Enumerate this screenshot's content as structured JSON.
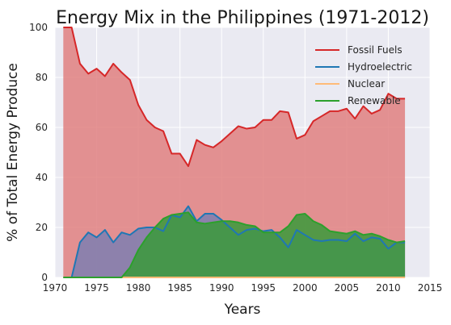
{
  "chart_data": {
    "type": "area",
    "title": "Energy Mix in the Philippines (1971-2012)",
    "xlabel": "Years",
    "ylabel": "% of Total Energy Produce",
    "xlim": [
      1970,
      2015
    ],
    "ylim": [
      0,
      100
    ],
    "xticks": [
      1970,
      1975,
      1980,
      1985,
      1990,
      1995,
      2000,
      2005,
      2010,
      2015
    ],
    "yticks": [
      0,
      20,
      40,
      60,
      80,
      100
    ],
    "grid": true,
    "legend": "top-right",
    "x": [
      1971,
      1972,
      1973,
      1974,
      1975,
      1976,
      1977,
      1978,
      1979,
      1980,
      1981,
      1982,
      1983,
      1984,
      1985,
      1986,
      1987,
      1988,
      1989,
      1990,
      1991,
      1992,
      1993,
      1994,
      1995,
      1996,
      1997,
      1998,
      1999,
      2000,
      2001,
      2002,
      2003,
      2004,
      2005,
      2006,
      2007,
      2008,
      2009,
      2010,
      2011,
      2012
    ],
    "series": [
      {
        "name": "Fossil Fuels",
        "color": "#d62728",
        "fill": "#e08080",
        "values": [
          100,
          100,
          85.5,
          81.5,
          83.5,
          80.5,
          85.5,
          82,
          79,
          69,
          63,
          60,
          58.5,
          49.5,
          49.5,
          44.5,
          55,
          53,
          52,
          54.5,
          57.5,
          60.5,
          59.5,
          60,
          63,
          63,
          66.5,
          66,
          55.5,
          57,
          62.5,
          64.5,
          66.5,
          66.5,
          67.5,
          63.5,
          68.5,
          65.5,
          67,
          73.5,
          71.5,
          71.5
        ]
      },
      {
        "name": "Hydroelectric",
        "color": "#1f77b4",
        "fill": "#7e7fb0",
        "values": [
          0,
          0,
          14,
          18,
          16,
          19,
          14,
          18,
          17,
          19.5,
          20,
          20,
          18.5,
          25,
          24,
          28.5,
          22.5,
          25.5,
          25.5,
          23,
          20,
          17,
          19,
          19.5,
          18.5,
          19,
          16,
          12,
          19,
          17,
          15,
          14.5,
          15,
          15,
          14.5,
          17.5,
          14.5,
          16,
          15.5,
          11.5,
          14,
          14
        ]
      },
      {
        "name": "Nuclear",
        "color": "#ffbb78",
        "fill": "#ffbb78",
        "values": [
          0,
          0,
          0,
          0,
          0,
          0,
          0,
          0,
          0,
          0,
          0,
          0,
          0,
          0,
          0,
          0,
          0,
          0,
          0,
          0,
          0,
          0,
          0,
          0,
          0,
          0,
          0,
          0,
          0,
          0,
          0,
          0,
          0,
          0,
          0,
          0,
          0,
          0,
          0,
          0,
          0,
          0
        ]
      },
      {
        "name": "Renewable",
        "color": "#2ca02c",
        "fill": "#3a9a3a",
        "values": [
          0,
          0,
          0,
          0,
          0,
          0,
          0,
          0,
          4,
          11,
          16,
          20,
          23.5,
          25,
          25.5,
          26,
          22,
          21.5,
          22,
          22.5,
          22.5,
          22,
          21,
          20.5,
          18,
          18,
          18,
          20.5,
          25,
          25.5,
          22.5,
          21,
          18.5,
          18,
          17.5,
          18.5,
          17,
          17.5,
          16.5,
          15,
          14,
          14.5
        ]
      }
    ]
  }
}
